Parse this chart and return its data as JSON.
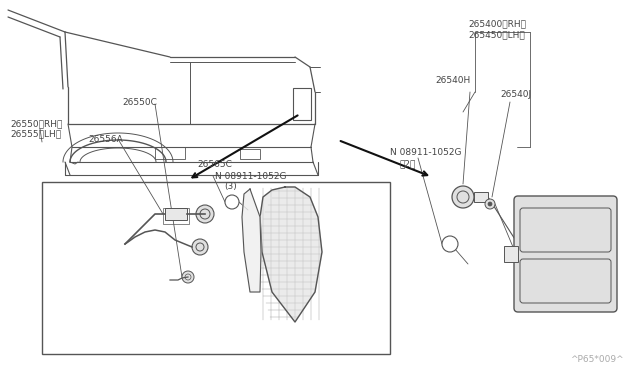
{
  "bg_color": "#ffffff",
  "line_color": "#555555",
  "text_color": "#444444",
  "watermark": "^P65*009^",
  "labels": {
    "26565C": [
      195,
      208
    ],
    "N08911_3_line1": "N 08911-1052G",
    "N08911_3_line2": "(3)",
    "26556A": [
      88,
      228
    ],
    "26550C": [
      130,
      268
    ],
    "26550RH": "26550〈RH〉",
    "26555LH": "26555〈LH〉",
    "265400RH": "265400〈RH〉",
    "265450LH": "265450〈LH〉",
    "26540H": "26540H",
    "26540J": "26540J",
    "N08911_2_line1": "N 08911-1052G",
    "N08911_2_line2": "〈2〉"
  }
}
